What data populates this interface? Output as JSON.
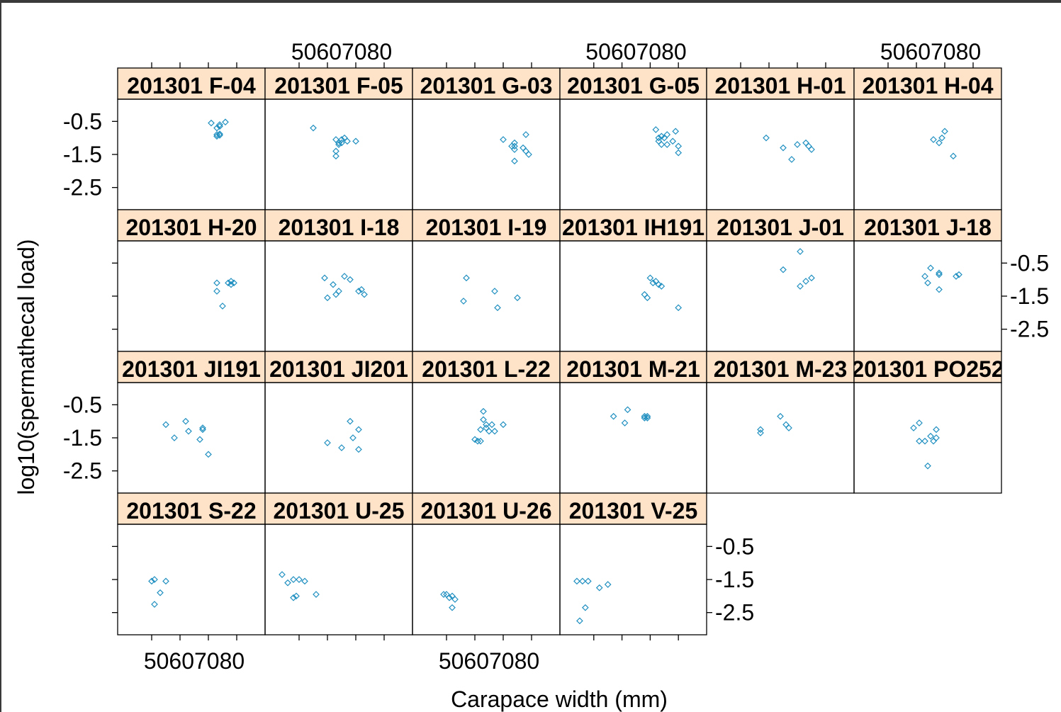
{
  "chart_data": {
    "type": "scatter",
    "xlabel": "Carapace width (mm)",
    "ylabel": "log10(spermathecal load)",
    "x_ticks": [
      "50607080"
    ],
    "y_ticks": [
      "-0.5",
      "-1.5",
      "-2.5"
    ],
    "xlim": [
      40,
      88
    ],
    "ylim": [
      -3.0,
      0.0
    ],
    "point_color": "#1f8fc0",
    "strip_color": "#ffe3c9",
    "panels": [
      {
        "label": "201301 F-04",
        "points": [
          [
            71,
            -0.55
          ],
          [
            73,
            -0.7
          ],
          [
            74,
            -0.6
          ],
          [
            74,
            -0.65
          ],
          [
            76,
            -0.52
          ],
          [
            73,
            -0.9
          ],
          [
            73,
            -0.95
          ],
          [
            74,
            -0.92
          ],
          [
            74,
            -0.88
          ]
        ]
      },
      {
        "label": "201301 F-05",
        "points": [
          [
            55,
            -0.7
          ],
          [
            63,
            -1.05
          ],
          [
            64,
            -1.2
          ],
          [
            64,
            -1.15
          ],
          [
            65,
            -1.05
          ],
          [
            66,
            -1.0
          ],
          [
            67,
            -1.1
          ],
          [
            70,
            -1.1
          ],
          [
            63,
            -1.4
          ],
          [
            63,
            -1.55
          ],
          [
            65,
            -1.15
          ]
        ]
      },
      {
        "label": "201301 G-03",
        "points": [
          [
            70,
            -1.05
          ],
          [
            73,
            -1.25
          ],
          [
            74,
            -1.15
          ],
          [
            74,
            -1.35
          ],
          [
            74,
            -1.7
          ],
          [
            77,
            -1.3
          ],
          [
            78,
            -1.4
          ],
          [
            78,
            -0.9
          ],
          [
            79,
            -1.5
          ],
          [
            74,
            -1.25
          ]
        ]
      },
      {
        "label": "201301 G-05",
        "points": [
          [
            72,
            -0.75
          ],
          [
            73,
            -1.0
          ],
          [
            73,
            -1.1
          ],
          [
            74,
            -0.95
          ],
          [
            75,
            -1.0
          ],
          [
            76,
            -0.9
          ],
          [
            76,
            -1.2
          ],
          [
            78,
            -1.1
          ],
          [
            79,
            -0.8
          ],
          [
            80,
            -1.25
          ],
          [
            80,
            -1.45
          ],
          [
            74,
            -1.2
          ]
        ]
      },
      {
        "label": "201301 H-01",
        "points": [
          [
            59,
            -1.0
          ],
          [
            65,
            -1.3
          ],
          [
            68,
            -1.65
          ],
          [
            70,
            -1.2
          ],
          [
            73,
            -1.15
          ],
          [
            75,
            -1.35
          ],
          [
            74,
            -1.25
          ]
        ]
      },
      {
        "label": "201301 H-04",
        "points": [
          [
            66,
            -1.05
          ],
          [
            68,
            -1.15
          ],
          [
            69,
            -1.0
          ],
          [
            70,
            -0.8
          ],
          [
            73,
            -1.55
          ]
        ]
      },
      {
        "label": "201301 H-20",
        "points": [
          [
            73,
            -1.1
          ],
          [
            73,
            -1.35
          ],
          [
            75,
            -1.8
          ],
          [
            77,
            -1.1
          ],
          [
            78,
            -1.05
          ],
          [
            78,
            -1.15
          ],
          [
            79,
            -1.1
          ]
        ]
      },
      {
        "label": "201301 I-18",
        "points": [
          [
            59,
            -0.95
          ],
          [
            60,
            -1.55
          ],
          [
            62,
            -1.15
          ],
          [
            63,
            -1.45
          ],
          [
            64,
            -1.35
          ],
          [
            66,
            -0.9
          ],
          [
            68,
            -1.0
          ],
          [
            71,
            -1.35
          ],
          [
            72,
            -1.3
          ],
          [
            73,
            -1.45
          ]
        ]
      },
      {
        "label": "201301 I-19",
        "points": [
          [
            57,
            -0.95
          ],
          [
            56,
            -1.65
          ],
          [
            67,
            -1.35
          ],
          [
            68,
            -1.85
          ],
          [
            75,
            -1.55
          ]
        ]
      },
      {
        "label": "201301 IH191",
        "points": [
          [
            70,
            -0.95
          ],
          [
            71,
            -1.1
          ],
          [
            72,
            -1.05
          ],
          [
            73,
            -1.15
          ],
          [
            74,
            -1.2
          ],
          [
            68,
            -1.45
          ],
          [
            69,
            -1.55
          ],
          [
            80,
            -1.85
          ]
        ]
      },
      {
        "label": "201301 J-01",
        "points": [
          [
            71,
            -0.15
          ],
          [
            65,
            -0.7
          ],
          [
            71,
            -1.2
          ],
          [
            73,
            -1.05
          ],
          [
            75,
            -0.95
          ]
        ]
      },
      {
        "label": "201301 J-18",
        "points": [
          [
            63,
            -0.9
          ],
          [
            64,
            -1.1
          ],
          [
            65,
            -0.65
          ],
          [
            68,
            -0.85
          ],
          [
            68,
            -0.8
          ],
          [
            68,
            -1.3
          ],
          [
            74,
            -0.9
          ],
          [
            75,
            -0.85
          ]
        ]
      },
      {
        "label": "201301 JI191",
        "points": [
          [
            55,
            -1.1
          ],
          [
            58,
            -1.5
          ],
          [
            62,
            -1.0
          ],
          [
            63,
            -1.3
          ],
          [
            67,
            -1.55
          ],
          [
            68,
            -1.2
          ],
          [
            68,
            -1.25
          ],
          [
            70,
            -2.0
          ]
        ]
      },
      {
        "label": "201301 JI201",
        "points": [
          [
            60,
            -1.65
          ],
          [
            65,
            -1.8
          ],
          [
            68,
            -1.0
          ],
          [
            69,
            -1.5
          ],
          [
            71,
            -1.25
          ],
          [
            71,
            -1.85
          ]
        ]
      },
      {
        "label": "201301 L-22",
        "points": [
          [
            63,
            -0.7
          ],
          [
            63,
            -0.95
          ],
          [
            64,
            -1.1
          ],
          [
            64,
            -1.2
          ],
          [
            62,
            -1.25
          ],
          [
            65,
            -1.3
          ],
          [
            66,
            -1.1
          ],
          [
            67,
            -1.3
          ],
          [
            70,
            -1.1
          ],
          [
            60,
            -1.55
          ],
          [
            61,
            -1.6
          ],
          [
            62,
            -1.6
          ]
        ]
      },
      {
        "label": "201301 M-21",
        "points": [
          [
            57,
            -0.85
          ],
          [
            61,
            -1.05
          ],
          [
            62,
            -0.65
          ],
          [
            68,
            -0.85
          ],
          [
            69,
            -0.9
          ],
          [
            68,
            -0.9
          ],
          [
            69,
            -0.85
          ]
        ]
      },
      {
        "label": "201301 M-23",
        "points": [
          [
            57,
            -1.25
          ],
          [
            57,
            -1.35
          ],
          [
            64,
            -0.85
          ],
          [
            66,
            -1.1
          ],
          [
            67,
            -1.2
          ]
        ]
      },
      {
        "label": "201301 PO252",
        "points": [
          [
            59,
            -1.2
          ],
          [
            61,
            -1.05
          ],
          [
            61,
            -1.6
          ],
          [
            63,
            -1.6
          ],
          [
            65,
            -1.45
          ],
          [
            66,
            -1.6
          ],
          [
            67,
            -1.25
          ],
          [
            67,
            -1.5
          ],
          [
            64,
            -2.35
          ]
        ]
      },
      {
        "label": "201301 S-22",
        "points": [
          [
            50,
            -1.55
          ],
          [
            51,
            -1.5
          ],
          [
            53,
            -1.9
          ],
          [
            55,
            -1.55
          ],
          [
            51,
            -2.25
          ]
        ]
      },
      {
        "label": "201301 U-25",
        "points": [
          [
            44,
            -1.35
          ],
          [
            46,
            -1.6
          ],
          [
            48,
            -1.5
          ],
          [
            50,
            -1.5
          ],
          [
            52,
            -1.55
          ],
          [
            49,
            -2.0
          ],
          [
            48,
            -2.05
          ],
          [
            56,
            -1.95
          ]
        ]
      },
      {
        "label": "201301 U-26",
        "points": [
          [
            49,
            -1.95
          ],
          [
            50,
            -1.95
          ],
          [
            51,
            -2.05
          ],
          [
            52,
            -2.0
          ],
          [
            53,
            -2.1
          ],
          [
            52,
            -2.35
          ]
        ]
      },
      {
        "label": "201301 V-25",
        "points": [
          [
            44,
            -1.55
          ],
          [
            46,
            -1.55
          ],
          [
            48,
            -1.55
          ],
          [
            52,
            -1.75
          ],
          [
            55,
            -1.65
          ],
          [
            47,
            -2.35
          ],
          [
            45,
            -2.75
          ]
        ]
      }
    ]
  }
}
